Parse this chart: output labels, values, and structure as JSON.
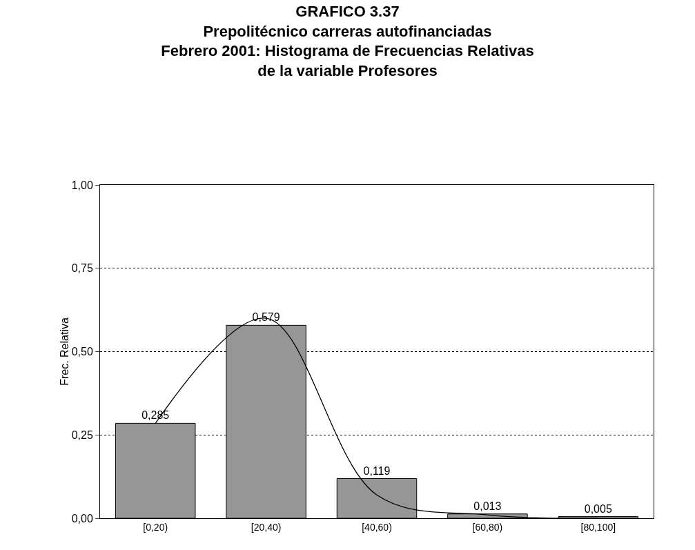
{
  "chart_data": {
    "type": "bar",
    "title": "GRAFICO 3.37\nPrepolitécnico carreras autofinanciadas\nFebrero 2001: Histograma de Frecuencias Relativas\nde la variable Profesores",
    "ylabel": "Frec. Relativa",
    "categories": [
      "[0,20)",
      "[20,40)",
      "[40,60)",
      "[60,80)",
      "[80,100]"
    ],
    "values": [
      0.285,
      0.579,
      0.119,
      0.013,
      0.005
    ],
    "value_labels": [
      "0,285",
      "0,579",
      "0,119",
      "0,013",
      "0,005"
    ],
    "color": "#969696",
    "series": [
      {
        "type": "line",
        "color": "#000000",
        "values": [
          0.285,
          0.6,
          0.07,
          0.01,
          0
        ]
      }
    ],
    "ylim": [
      0,
      1
    ],
    "yticks": [
      {
        "value": 0,
        "label": "0,00"
      },
      {
        "value": 0.25,
        "label": "0,25"
      },
      {
        "value": 0.5,
        "label": "0,50"
      },
      {
        "value": 0.75,
        "label": "0,75"
      },
      {
        "value": 1,
        "label": "1,00"
      }
    ],
    "grid": "y",
    "marker": "none",
    "line_style": "solid"
  }
}
